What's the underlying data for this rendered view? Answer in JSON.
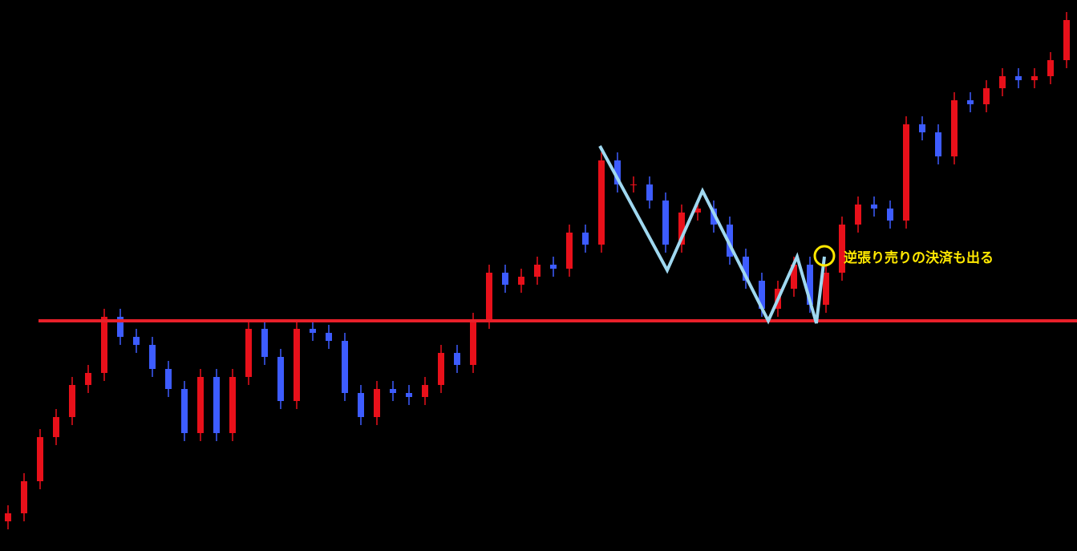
{
  "chart_data": {
    "type": "candlestick",
    "up_color": "#e8101a",
    "down_color": "#3d5cff",
    "background": "#000000",
    "xlim": [
      -0.5,
      66.65
    ],
    "ylim": [
      0,
      687
    ],
    "open": [
      37,
      47,
      87,
      142,
      167,
      207,
      222,
      292,
      267,
      257,
      227,
      202,
      147,
      217,
      147,
      217,
      277,
      242,
      187,
      277,
      272,
      262,
      197,
      167,
      202,
      197,
      192,
      207,
      247,
      232,
      287,
      347,
      332,
      342,
      357,
      352,
      397,
      382,
      487,
      457,
      457,
      437,
      382,
      422,
      427,
      407,
      367,
      337,
      302,
      327,
      357,
      307,
      347,
      407,
      432,
      427,
      412,
      532,
      522,
      492,
      562,
      557,
      577,
      592,
      587,
      592,
      612
    ],
    "high": [
      57,
      97,
      152,
      177,
      217,
      232,
      302,
      302,
      277,
      267,
      237,
      212,
      227,
      227,
      227,
      287,
      287,
      252,
      287,
      287,
      282,
      272,
      207,
      212,
      212,
      207,
      217,
      257,
      257,
      297,
      357,
      357,
      352,
      367,
      367,
      407,
      407,
      497,
      497,
      467,
      467,
      447,
      432,
      437,
      437,
      417,
      377,
      347,
      337,
      367,
      367,
      357,
      417,
      442,
      442,
      437,
      542,
      542,
      532,
      572,
      572,
      587,
      602,
      602,
      602,
      622,
      672
    ],
    "low": [
      27,
      37,
      77,
      132,
      157,
      197,
      212,
      257,
      247,
      217,
      192,
      137,
      137,
      137,
      137,
      207,
      232,
      177,
      177,
      262,
      252,
      187,
      157,
      157,
      187,
      182,
      182,
      197,
      222,
      222,
      277,
      322,
      322,
      332,
      342,
      342,
      372,
      372,
      447,
      447,
      427,
      372,
      372,
      412,
      397,
      357,
      327,
      292,
      292,
      317,
      297,
      297,
      337,
      397,
      417,
      402,
      402,
      512,
      482,
      482,
      547,
      547,
      567,
      577,
      577,
      582,
      602
    ],
    "close": [
      47,
      87,
      142,
      167,
      207,
      222,
      292,
      267,
      257,
      227,
      202,
      147,
      217,
      147,
      217,
      277,
      242,
      187,
      277,
      272,
      262,
      197,
      167,
      202,
      197,
      192,
      207,
      247,
      232,
      287,
      347,
      332,
      342,
      357,
      352,
      397,
      382,
      487,
      457,
      457,
      437,
      382,
      422,
      427,
      407,
      367,
      337,
      302,
      327,
      357,
      307,
      347,
      407,
      432,
      427,
      412,
      532,
      522,
      492,
      562,
      557,
      577,
      592,
      587,
      592,
      612,
      662
    ],
    "level": {
      "value": 287,
      "color": "#e8202a"
    },
    "zigzag": {
      "color": "#9fd8f0",
      "x": [
        36.9,
        41.1,
        43.3,
        47.4,
        49.2,
        50.4,
        50.9
      ],
      "y": [
        505,
        350,
        449,
        287,
        367,
        284,
        367
      ]
    },
    "marker": {
      "x": 50.9,
      "y": 367,
      "color": "#ffe800"
    },
    "annotation": "逆張り売りの決済も出る"
  }
}
